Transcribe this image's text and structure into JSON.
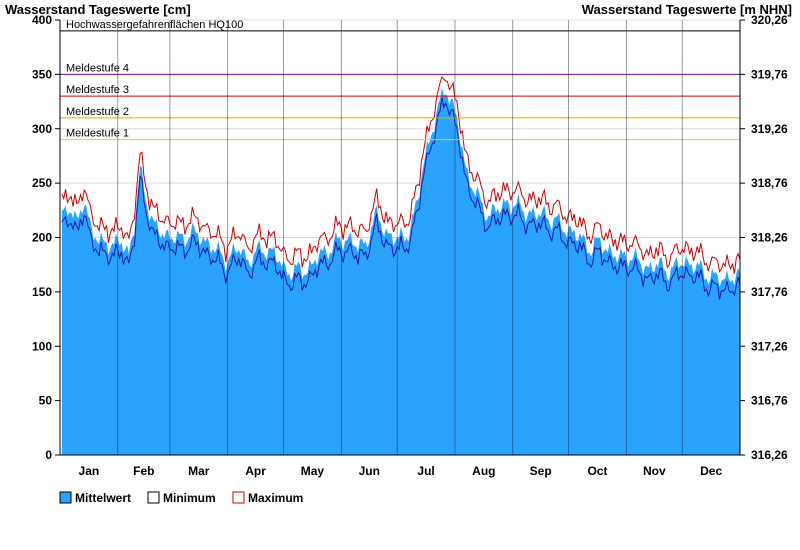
{
  "chart_data": {
    "type": "area",
    "title_left": "Wasserstand Tageswerte [cm]",
    "title_right": "Wasserstand Tageswerte [m NHN]",
    "ylim": [
      0,
      400
    ],
    "yticks_left": [
      "0",
      "50",
      "100",
      "150",
      "200",
      "250",
      "300",
      "350",
      "400"
    ],
    "yticks_right": [
      "316,26",
      "316,76",
      "317,26",
      "317,76",
      "318,26",
      "318,76",
      "319,26",
      "319,76",
      "320,26"
    ],
    "months": [
      "Jan",
      "Feb",
      "Mar",
      "Apr",
      "May",
      "Jun",
      "Jul",
      "Aug",
      "Sep",
      "Oct",
      "Nov",
      "Dec"
    ],
    "thresholds": [
      {
        "label": "Hochwassergefahrenflächen HQ100",
        "value": 390,
        "color": "#000000"
      },
      {
        "label": "Meldestufe 4",
        "value": 350,
        "color": "#6a0dad"
      },
      {
        "label": "Meldestufe 3",
        "value": 330,
        "color": "#cc0000"
      },
      {
        "label": "Meldestufe 2",
        "value": 310,
        "color": "#e0a800"
      },
      {
        "label": "Meldestufe 1",
        "value": 290,
        "color": "#e6d600"
      }
    ],
    "legend": [
      {
        "label": "Mittelwert",
        "color": "#2aa3ff"
      },
      {
        "label": "Minimum",
        "color": "#000000"
      },
      {
        "label": "Maximum",
        "color": "#cc0000"
      }
    ],
    "colors": {
      "mean_fill": "#2aa3ff",
      "minimum_line": "#1a1aa6",
      "maximum_line": "#cc0000"
    },
    "day_axis_max": 365,
    "mean_keypoints": [
      [
        1,
        222
      ],
      [
        5,
        230
      ],
      [
        9,
        210
      ],
      [
        13,
        237
      ],
      [
        17,
        205
      ],
      [
        21,
        195
      ],
      [
        25,
        198
      ],
      [
        29,
        190
      ],
      [
        33,
        198
      ],
      [
        37,
        185
      ],
      [
        40,
        210
      ],
      [
        43,
        262
      ],
      [
        46,
        240
      ],
      [
        50,
        210
      ],
      [
        55,
        205
      ],
      [
        60,
        200
      ],
      [
        65,
        198
      ],
      [
        70,
        205
      ],
      [
        75,
        200
      ],
      [
        80,
        195
      ],
      [
        85,
        185
      ],
      [
        89,
        180
      ],
      [
        93,
        185
      ],
      [
        97,
        190
      ],
      [
        101,
        178
      ],
      [
        105,
        185
      ],
      [
        110,
        190
      ],
      [
        115,
        185
      ],
      [
        120,
        172
      ],
      [
        125,
        168
      ],
      [
        130,
        170
      ],
      [
        135,
        173
      ],
      [
        140,
        185
      ],
      [
        145,
        190
      ],
      [
        150,
        196
      ],
      [
        155,
        200
      ],
      [
        160,
        190
      ],
      [
        164,
        195
      ],
      [
        166,
        205
      ],
      [
        170,
        220
      ],
      [
        175,
        205
      ],
      [
        180,
        198
      ],
      [
        185,
        200
      ],
      [
        189,
        215
      ],
      [
        192,
        230
      ],
      [
        195,
        270
      ],
      [
        207,
        340
      ],
      [
        210,
        325
      ],
      [
        214,
        300
      ],
      [
        218,
        262
      ],
      [
        222,
        245
      ],
      [
        226,
        230
      ],
      [
        230,
        222
      ],
      [
        235,
        225
      ],
      [
        240,
        233
      ],
      [
        245,
        228
      ],
      [
        250,
        225
      ],
      [
        255,
        220
      ],
      [
        260,
        222
      ],
      [
        265,
        215
      ],
      [
        270,
        210
      ],
      [
        275,
        205
      ],
      [
        280,
        198
      ],
      [
        285,
        190
      ],
      [
        290,
        195
      ],
      [
        295,
        188
      ],
      [
        300,
        180
      ],
      [
        305,
        185
      ],
      [
        310,
        178
      ],
      [
        315,
        172
      ],
      [
        320,
        175
      ],
      [
        325,
        170
      ],
      [
        330,
        172
      ],
      [
        335,
        178
      ],
      [
        340,
        175
      ],
      [
        345,
        168
      ],
      [
        350,
        165
      ],
      [
        355,
        160
      ],
      [
        360,
        165
      ],
      [
        365,
        162
      ]
    ]
  }
}
